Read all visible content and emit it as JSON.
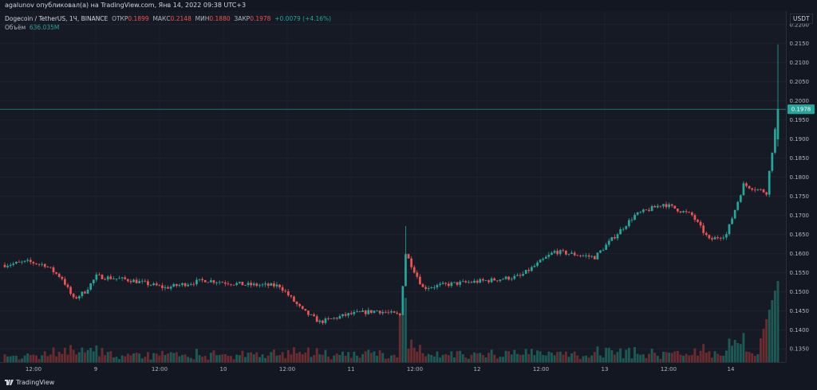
{
  "publisher": {
    "text": "agalunov опубликовал(а) на TradingView.com, Янв 14, 2022 09:38 UTC+3"
  },
  "legend": {
    "symbol": "Dogecoin / TetherUS, 1Ч, BINANCE",
    "open_label": "ОТКР",
    "open_value": "0.1899",
    "high_label": "МАКС",
    "high_value": "0.2148",
    "low_label": "МИН",
    "low_value": "0.1880",
    "close_label": "ЗАКР",
    "close_value": "0.1978",
    "change": "+0.0079 (+4.16%)",
    "volume_label": "Объём",
    "volume_value": "636.035M"
  },
  "currency_label": "USDT",
  "current_price_label": "0.1978",
  "footer_logo": "TradingView",
  "colors": {
    "up": "#26a69a",
    "down": "#ef5350",
    "up_vol": "#1d5a55",
    "down_vol": "#6b2c2f",
    "grid": "#22263a",
    "price_line": "#26a69a"
  },
  "chart_data": {
    "type": "candlestick",
    "symbol": "Dogecoin / TetherUS",
    "interval": "1Ч",
    "exchange": "BINANCE",
    "price_axis_ticks": [
      "0.2200",
      "0.2150",
      "0.2100",
      "0.2050",
      "0.2000",
      "0.1950",
      "0.1900",
      "0.1850",
      "0.1800",
      "0.1750",
      "0.1700",
      "0.1650",
      "0.1600",
      "0.1550",
      "0.1500",
      "0.1450",
      "0.1400",
      "0.1350"
    ],
    "time_axis_ticks": [
      "12:00",
      "9",
      "12:00",
      "10",
      "12:00",
      "11",
      "12:00",
      "12",
      "12:00",
      "13",
      "12:00",
      "14"
    ],
    "ylim": [
      0.1315,
      0.2235
    ],
    "current_price": 0.1978,
    "control_points": [
      [
        0,
        0.157
      ],
      [
        8,
        0.1578
      ],
      [
        14,
        0.157
      ],
      [
        20,
        0.1535
      ],
      [
        24,
        0.148
      ],
      [
        28,
        0.15
      ],
      [
        32,
        0.154
      ],
      [
        44,
        0.153
      ],
      [
        56,
        0.151
      ],
      [
        70,
        0.153
      ],
      [
        84,
        0.1518
      ],
      [
        96,
        0.1515
      ],
      [
        104,
        0.145
      ],
      [
        110,
        0.142
      ],
      [
        120,
        0.144
      ],
      [
        130,
        0.145
      ],
      [
        138,
        0.1438
      ],
      [
        140,
        0.16
      ],
      [
        146,
        0.151
      ],
      [
        156,
        0.152
      ],
      [
        170,
        0.153
      ],
      [
        180,
        0.154
      ],
      [
        192,
        0.1605
      ],
      [
        206,
        0.159
      ],
      [
        220,
        0.17
      ],
      [
        230,
        0.173
      ],
      [
        240,
        0.17
      ],
      [
        246,
        0.1635
      ],
      [
        252,
        0.165
      ],
      [
        258,
        0.178
      ],
      [
        266,
        0.176
      ],
      [
        270,
        0.1978
      ]
    ],
    "candle_count": 271
  }
}
